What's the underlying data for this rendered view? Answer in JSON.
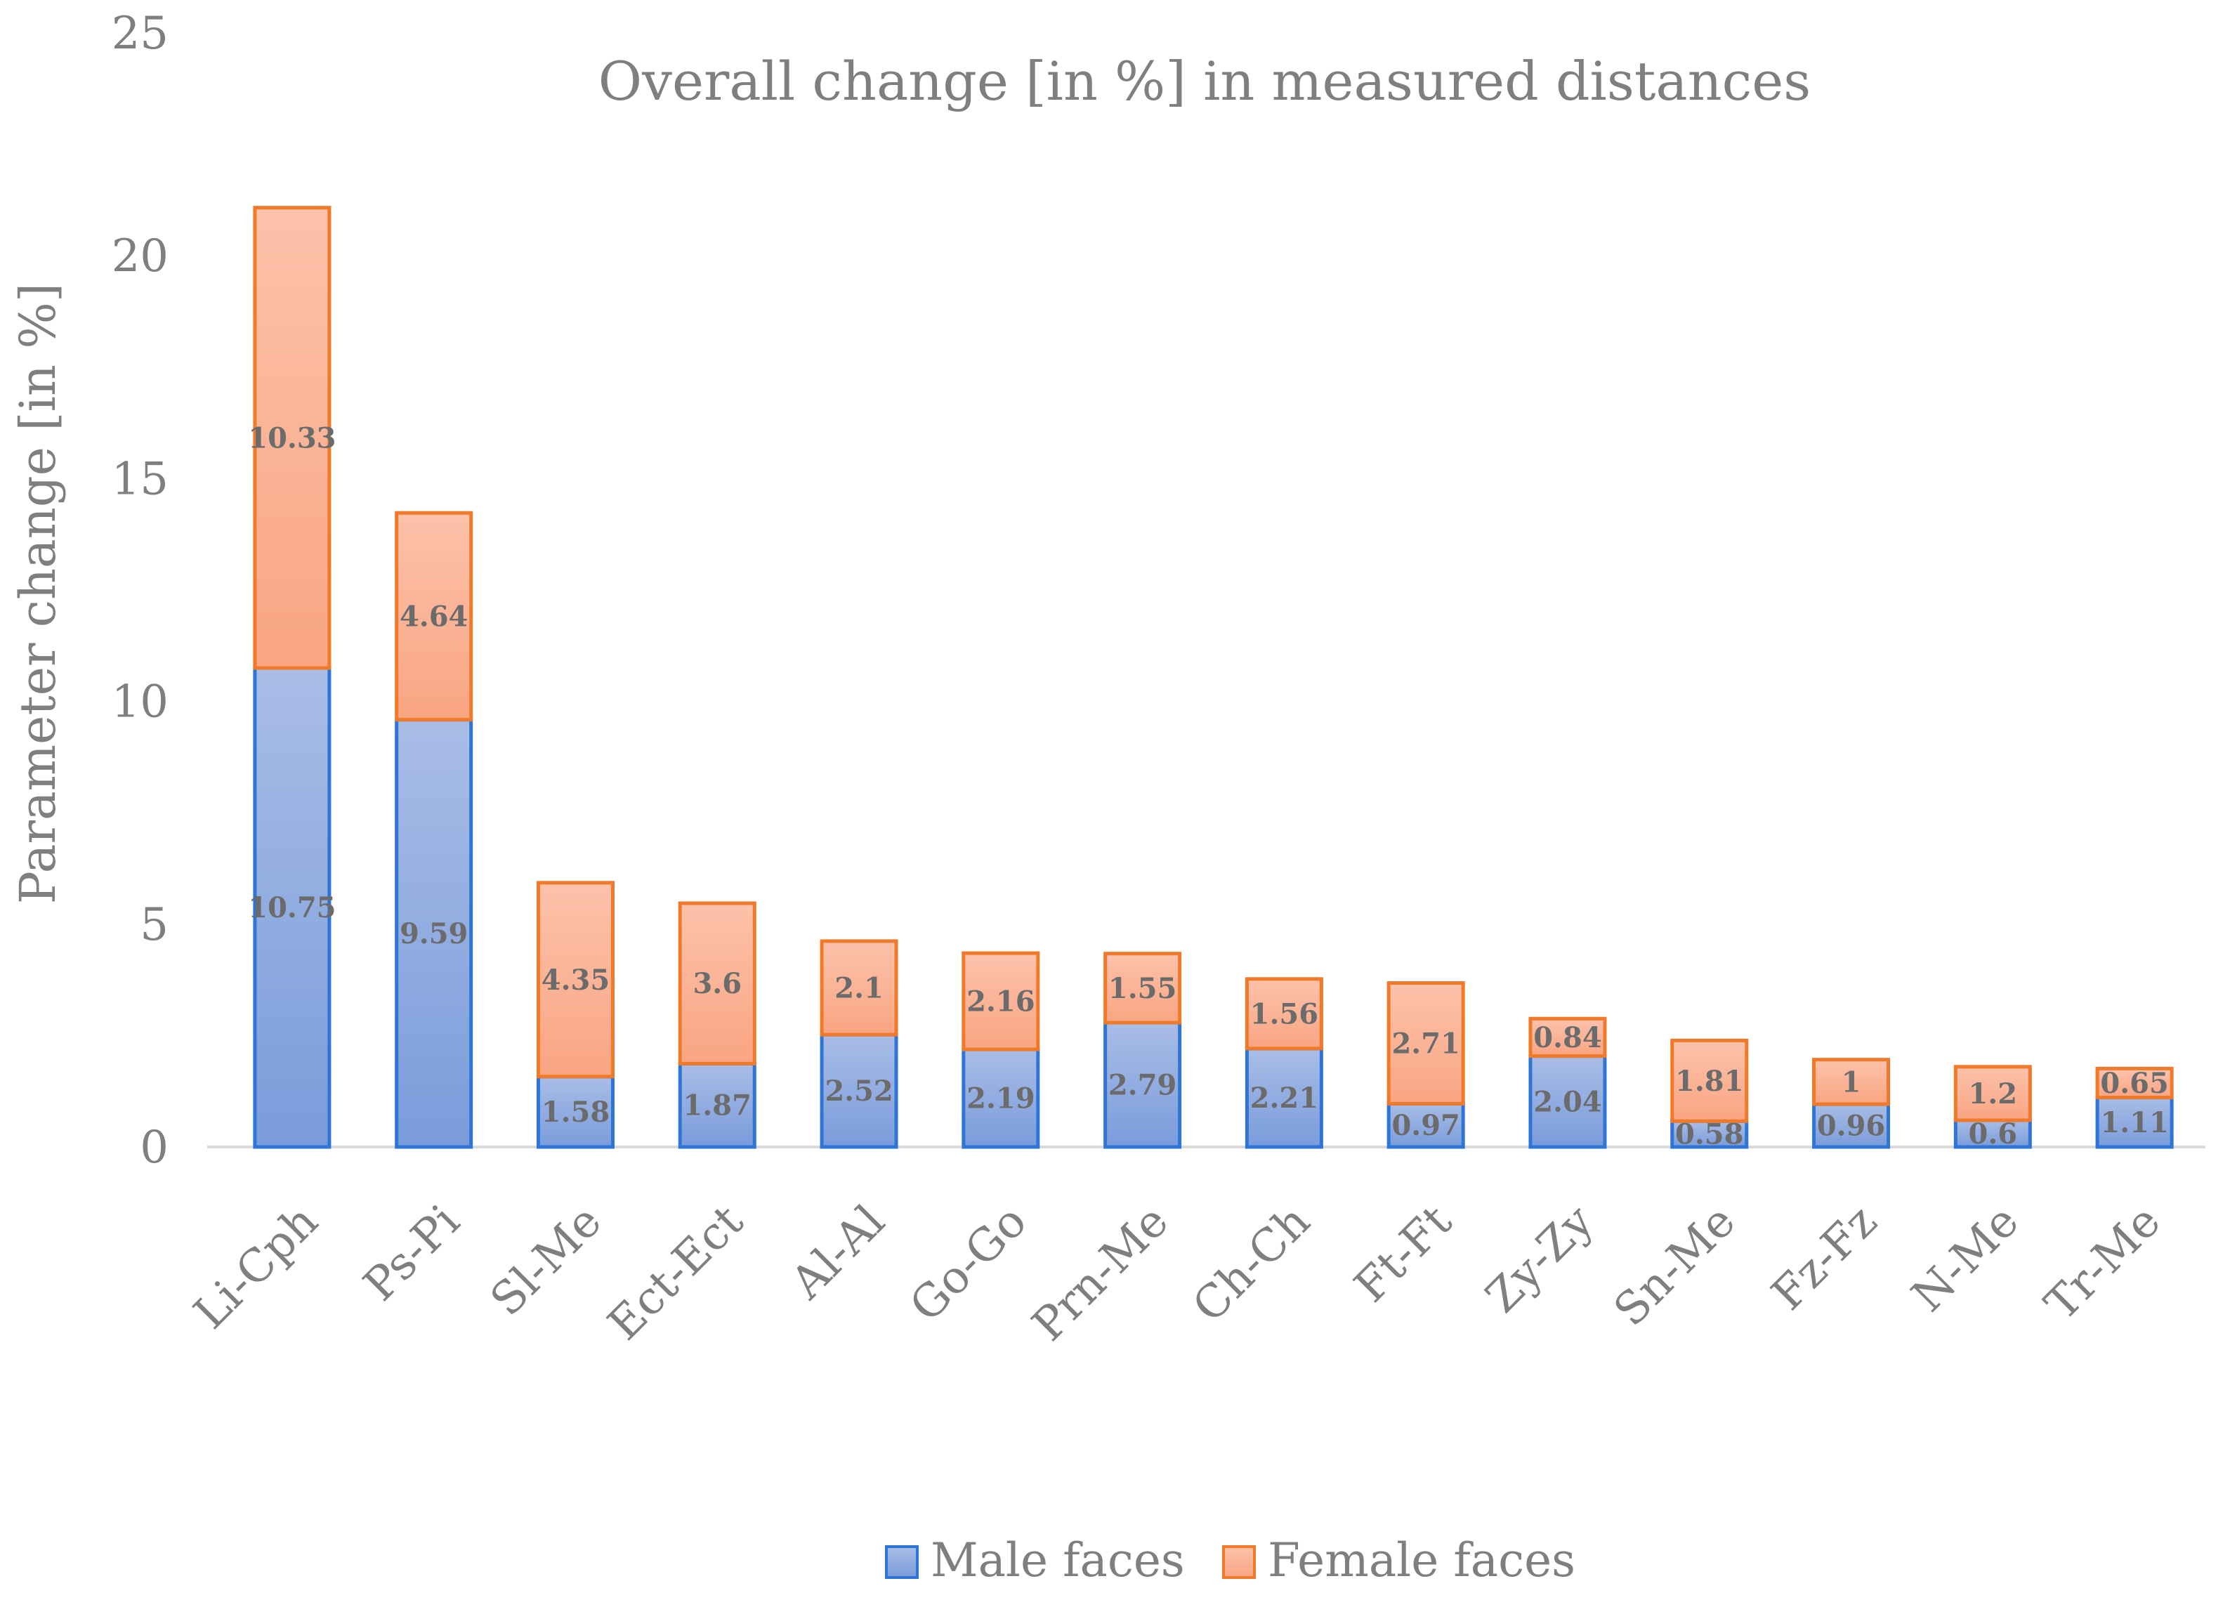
{
  "chart_data": {
    "type": "bar",
    "stacked": true,
    "title": "Overall change [in %] in measured distances",
    "xlabel": "",
    "ylabel": "Parameter change [in %]",
    "ylim": [
      0,
      25
    ],
    "yticks": [
      0,
      5,
      10,
      15,
      20,
      25
    ],
    "grid": false,
    "legend": "bottom",
    "categories": [
      "Li-Cph",
      "Ps-Pi",
      "Sl-Me",
      "Ect-Ect",
      "Al-Al",
      "Go-Go",
      "Prn-Me",
      "Ch-Ch",
      "Ft-Ft",
      "Zy-Zy",
      "Sn-Me",
      "Fz-Fz",
      "N-Me",
      "Tr-Me"
    ],
    "series": [
      {
        "name": "Male faces",
        "color": "#8faadc",
        "stroke": "#2e75d6",
        "values": [
          10.75,
          9.59,
          1.58,
          1.87,
          2.52,
          2.19,
          2.79,
          2.21,
          0.97,
          2.04,
          0.58,
          0.96,
          0.6,
          1.11
        ]
      },
      {
        "name": "Female faces",
        "color": "#fbb59b",
        "stroke": "#f07a2a",
        "values": [
          10.33,
          4.64,
          4.35,
          3.6,
          2.1,
          2.16,
          1.55,
          1.56,
          2.71,
          0.84,
          1.81,
          1,
          1.2,
          0.65
        ]
      }
    ]
  }
}
